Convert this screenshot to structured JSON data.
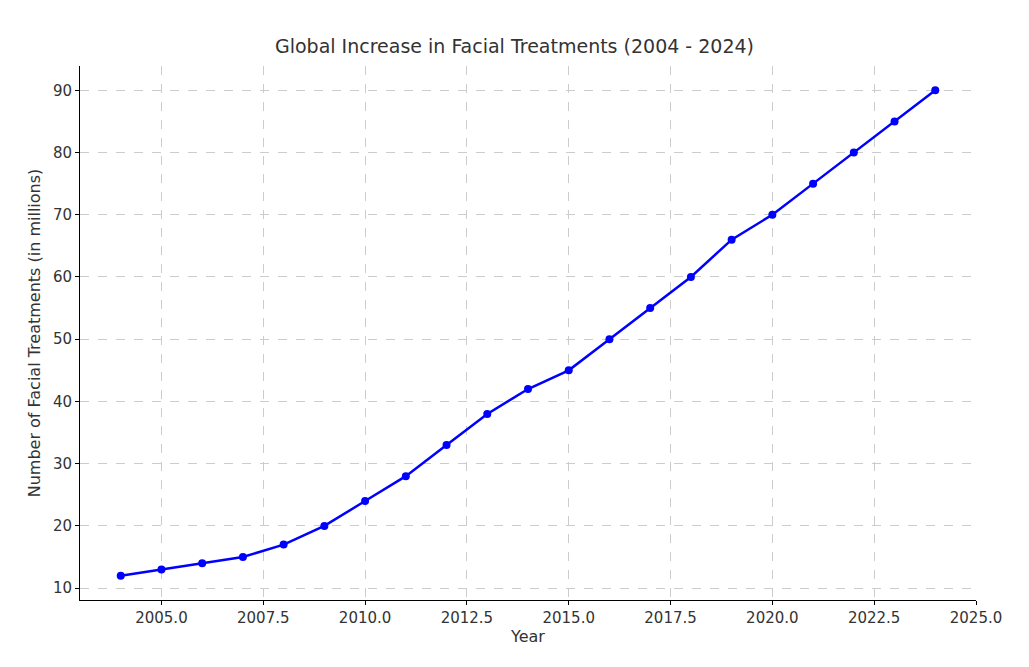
{
  "chart_data": {
    "type": "line",
    "title": "Global Increase in Facial Treatments (2004 - 2024)",
    "x_label": "Year",
    "y_label": "Number of Facial Treatments (in millions)",
    "x": [
      2004,
      2005,
      2006,
      2007,
      2008,
      2009,
      2010,
      2011,
      2012,
      2013,
      2014,
      2015,
      2016,
      2017,
      2018,
      2019,
      2020,
      2021,
      2022,
      2023,
      2024
    ],
    "values": [
      12,
      13,
      14,
      15,
      17,
      20,
      24,
      28,
      33,
      38,
      42,
      45,
      50,
      55,
      60,
      66,
      70,
      75,
      80,
      85,
      90
    ],
    "color": "#0000ff",
    "marker": "circle",
    "line_style": "solid",
    "xlim": [
      2003,
      2025
    ],
    "xticks": [
      {
        "value": 2005,
        "label": "2005.0"
      },
      {
        "value": 2007.5,
        "label": "2007.5"
      },
      {
        "value": 2010,
        "label": "2010.0"
      },
      {
        "value": 2012.5,
        "label": "2012.5"
      },
      {
        "value": 2015,
        "label": "2015.0"
      },
      {
        "value": 2017.5,
        "label": "2017.5"
      },
      {
        "value": 2020,
        "label": "2020.0"
      },
      {
        "value": 2022.5,
        "label": "2022.5"
      },
      {
        "value": 2025,
        "label": "2025.0"
      }
    ],
    "ylim": [
      8.1,
      93.9
    ],
    "yticks": [
      10,
      20,
      30,
      40,
      50,
      60,
      70,
      80,
      90
    ],
    "grid": true
  }
}
